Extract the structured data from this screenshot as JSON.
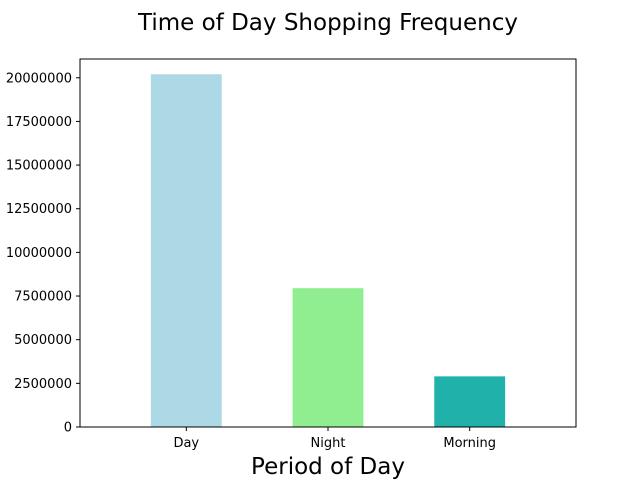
{
  "chart_data": {
    "type": "bar",
    "title": "Time of Day Shopping Frequency",
    "xlabel": "Period of Day",
    "ylabel": "",
    "categories": [
      "Day",
      "Night",
      "Morning"
    ],
    "values": [
      20200000,
      7950000,
      2900000
    ],
    "colors": [
      "#add8e6",
      "#90ee90",
      "#20b2aa"
    ],
    "ylim": [
      0,
      21075000
    ],
    "yticks": [
      0,
      2500000,
      5000000,
      7500000,
      10000000,
      12500000,
      15000000,
      17500000,
      20000000
    ],
    "ytick_labels": [
      "0",
      "2500000",
      "5000000",
      "7500000",
      "10000000",
      "12500000",
      "15000000",
      "17500000",
      "20000000"
    ],
    "grid": false,
    "legend": "none"
  }
}
